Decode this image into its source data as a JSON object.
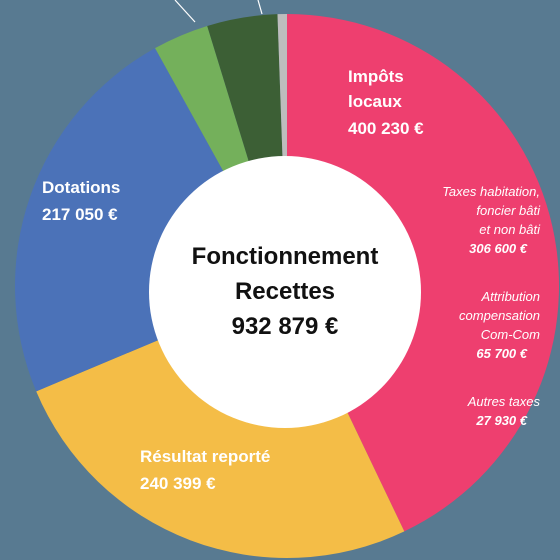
{
  "chart_data": {
    "type": "donut",
    "categories": [
      "Impôts locaux",
      "Résultat reporté",
      "Dotations",
      null,
      null,
      null
    ],
    "values": [
      400230,
      240399,
      217050,
      31000,
      39000,
      5200
    ],
    "value_labels": [
      "400 230 €",
      "240 399 €",
      "217 050 €",
      null,
      null,
      null
    ],
    "colors": [
      "#ee3f6f",
      "#f4bd47",
      "#4b72b8",
      "#74b05b",
      "#3c5f35",
      "#bdbdbd"
    ],
    "center_text": [
      "Fonctionnement",
      "Recettes",
      "932 879 €"
    ],
    "breakdown": [
      {
        "lines": [
          "Taxes habitation,",
          "foncier bâti",
          "et non bâti"
        ],
        "value": 306600,
        "value_label": "306 600 €"
      },
      {
        "lines": [
          "Attribution",
          "compensation",
          "Com-Com"
        ],
        "value": 65700,
        "value_label": "65 700 €"
      },
      {
        "lines": [
          "Autres taxes"
        ],
        "value": 27930,
        "value_label": "27 930 €"
      }
    ]
  }
}
